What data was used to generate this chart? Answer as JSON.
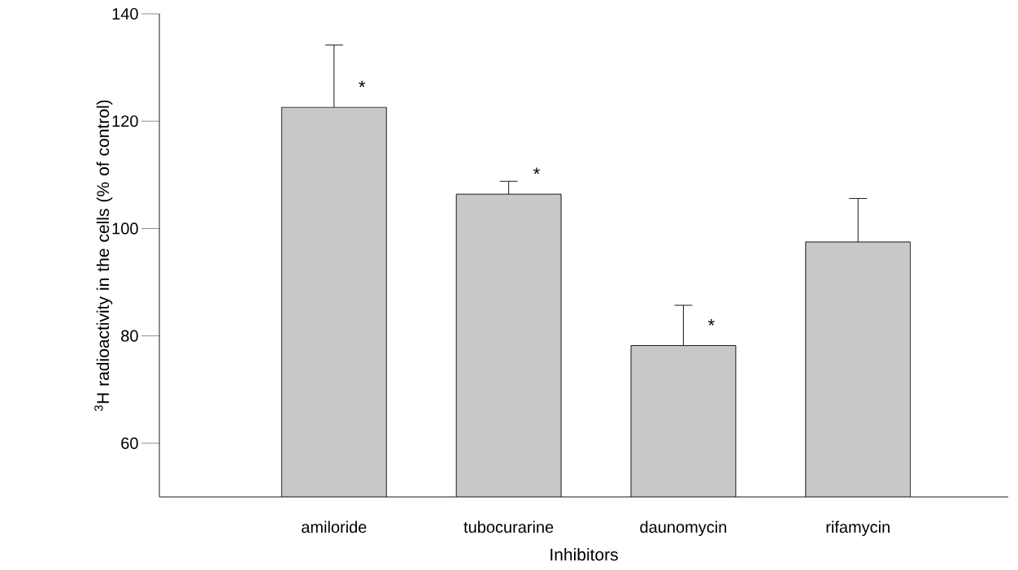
{
  "chart_data": {
    "type": "bar",
    "categories": [
      "amiloride",
      "tubocurarine",
      "daunomycin",
      "rifamycin"
    ],
    "values": [
      122.6,
      106.4,
      78.2,
      97.5
    ],
    "errors": [
      [
        122.6,
        134.2
      ],
      [
        106.4,
        108.8
      ],
      [
        78.2,
        85.7
      ],
      [
        97.5,
        105.6
      ]
    ],
    "color": "#c8c8c8",
    "xlabel": "Inhibitors",
    "ylabel": "$^{3}$H radioactivity in the cells (% of control)",
    "ylim": [
      50,
      140
    ],
    "yticks": [
      60,
      80,
      100,
      120,
      140
    ],
    "grid": false,
    "value_labels": [
      "*",
      "*",
      "*",
      null
    ]
  }
}
